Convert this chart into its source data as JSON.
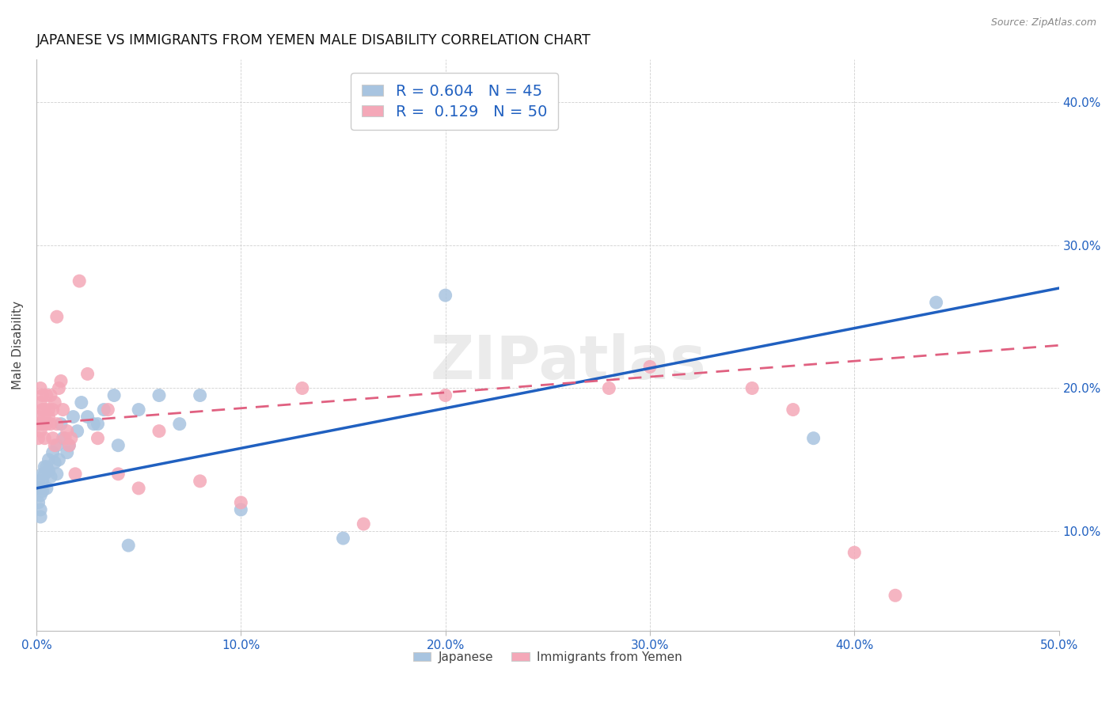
{
  "title": "JAPANESE VS IMMIGRANTS FROM YEMEN MALE DISABILITY CORRELATION CHART",
  "source": "Source: ZipAtlas.com",
  "ylabel": "Male Disability",
  "xlim": [
    0.0,
    0.5
  ],
  "ylim": [
    0.03,
    0.43
  ],
  "japanese_R": 0.604,
  "japanese_N": 45,
  "yemen_R": 0.129,
  "yemen_N": 50,
  "japanese_color": "#a8c4e0",
  "yemen_color": "#f4a8b8",
  "japanese_line_color": "#2060c0",
  "yemen_line_color": "#e06080",
  "background_color": "#ffffff",
  "grid_color": "#d0d0d0",
  "watermark": "ZIPatlas",
  "title_fontsize": 12.5,
  "japanese_x": [
    0.001,
    0.001,
    0.001,
    0.002,
    0.002,
    0.002,
    0.002,
    0.003,
    0.003,
    0.003,
    0.004,
    0.004,
    0.005,
    0.005,
    0.006,
    0.006,
    0.007,
    0.008,
    0.009,
    0.01,
    0.01,
    0.011,
    0.012,
    0.013,
    0.015,
    0.016,
    0.018,
    0.02,
    0.022,
    0.025,
    0.028,
    0.03,
    0.033,
    0.038,
    0.04,
    0.045,
    0.05,
    0.06,
    0.07,
    0.08,
    0.1,
    0.15,
    0.2,
    0.38,
    0.44
  ],
  "japanese_y": [
    0.13,
    0.135,
    0.12,
    0.125,
    0.13,
    0.115,
    0.11,
    0.14,
    0.135,
    0.128,
    0.145,
    0.14,
    0.13,
    0.145,
    0.15,
    0.142,
    0.138,
    0.155,
    0.148,
    0.14,
    0.16,
    0.15,
    0.175,
    0.165,
    0.155,
    0.16,
    0.18,
    0.17,
    0.19,
    0.18,
    0.175,
    0.175,
    0.185,
    0.195,
    0.16,
    0.09,
    0.185,
    0.195,
    0.175,
    0.195,
    0.115,
    0.095,
    0.265,
    0.165,
    0.26
  ],
  "yemen_x": [
    0.001,
    0.001,
    0.001,
    0.002,
    0.002,
    0.002,
    0.003,
    0.003,
    0.003,
    0.004,
    0.004,
    0.004,
    0.005,
    0.005,
    0.006,
    0.006,
    0.007,
    0.007,
    0.008,
    0.008,
    0.009,
    0.009,
    0.01,
    0.01,
    0.011,
    0.012,
    0.013,
    0.014,
    0.015,
    0.016,
    0.017,
    0.019,
    0.021,
    0.025,
    0.03,
    0.035,
    0.04,
    0.05,
    0.06,
    0.08,
    0.1,
    0.13,
    0.16,
    0.2,
    0.28,
    0.3,
    0.35,
    0.37,
    0.4,
    0.42
  ],
  "yemen_y": [
    0.165,
    0.18,
    0.175,
    0.19,
    0.17,
    0.2,
    0.185,
    0.175,
    0.195,
    0.18,
    0.185,
    0.165,
    0.195,
    0.175,
    0.185,
    0.18,
    0.175,
    0.195,
    0.165,
    0.185,
    0.19,
    0.16,
    0.25,
    0.175,
    0.2,
    0.205,
    0.185,
    0.165,
    0.17,
    0.16,
    0.165,
    0.14,
    0.275,
    0.21,
    0.165,
    0.185,
    0.14,
    0.13,
    0.17,
    0.135,
    0.12,
    0.2,
    0.105,
    0.195,
    0.2,
    0.215,
    0.2,
    0.185,
    0.085,
    0.055
  ]
}
